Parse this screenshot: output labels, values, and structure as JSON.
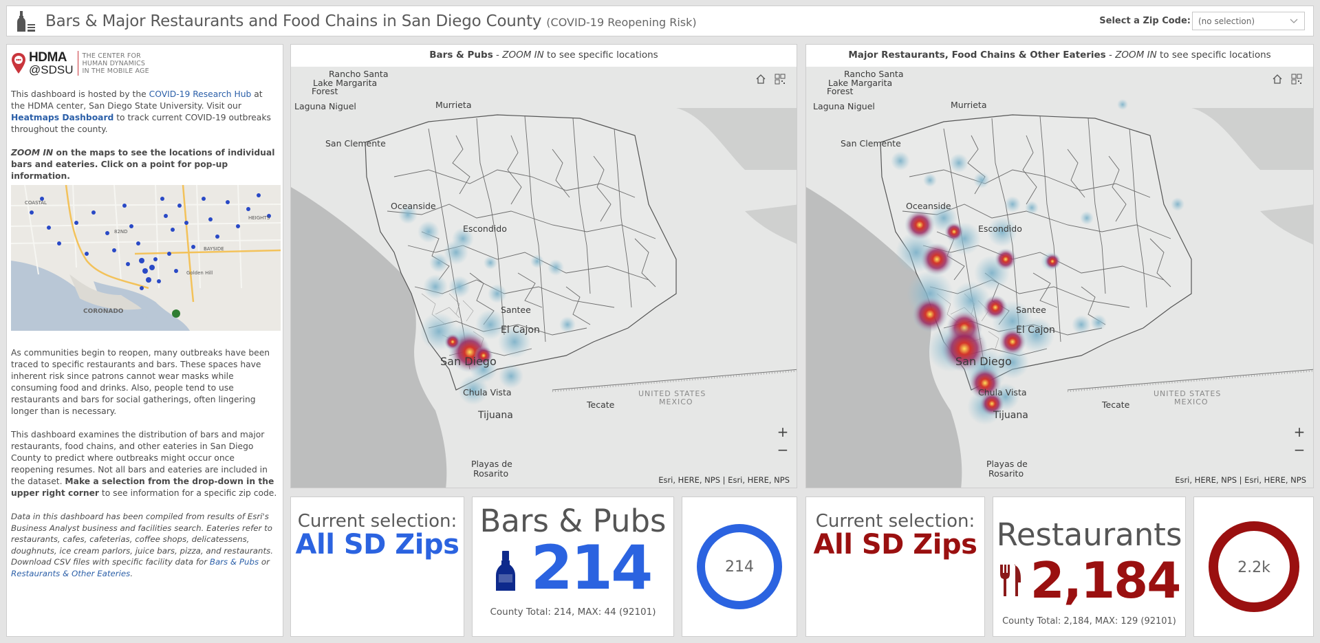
{
  "header": {
    "title": "Bars & Major Restaurants and Food Chains in San Diego County",
    "subtitle": "(COVID-19 Reopening Risk)",
    "zip_label": "Select a Zip Code:",
    "zip_value": "(no selection)",
    "icon": "bottle-and-glass-icon"
  },
  "sidebar": {
    "logo_line1": "HDMA",
    "logo_line2": "@SDSU",
    "logo_caption": [
      "THE CENTER FOR",
      "HUMAN DYNAMICS",
      "IN THE MOBILE AGE"
    ],
    "p1_a": "This dashboard is hosted by the ",
    "p1_link1": "COVID-19 Research Hub",
    "p1_b": " at the HDMA center, San Diego State University. Visit our ",
    "p1_link2": "Heatmaps Dashboard",
    "p1_c": " to track current COVID-19 outbreaks throughout the county.",
    "p2_a": "ZOOM IN",
    "p2_b": " on the maps to see the locations of individual bars and eateries. Click on a point for pop-up information.",
    "p3": "As communities begin to reopen, many outbreaks have been traced to specific restaurants and bars. These spaces have inherent risk since patrons cannot wear masks while consuming food and drinks. Also, people tend to use restaurants and bars for social gatherings, often lingering longer than is necessary.",
    "p4_a": "This dashboard examines the distribution of bars and major restaurants, food chains, and other eateries in San Diego County to predict where outbreaks might occur once reopening resumes. Not all bars and eateries are included in the dataset. ",
    "p4_b": "Make a selection from the drop-down in the upper right corner",
    "p4_c": " to see information for a specific zip code.",
    "p5_a": "Data in this dashboard has been compiled from results of Esri's Business Analyst business and facilities search. Eateries refer to restaurants, cafes, cafeterias, coffee shops, delicatessens, doughnuts, ice cream parlors, juice bars, pizza, and restaurants. Download CSV files with specific facility data for ",
    "p5_link1": "Bars & Pubs",
    "p5_or": " or ",
    "p5_link2": "Restaurants & Other Eateries",
    "p5_end": ".",
    "minimap_labels": [
      "COASTAL",
      "82ND",
      "BAYSIDE",
      "HEIGHTS",
      "CORONADO",
      "Golden Hill"
    ]
  },
  "maps": [
    {
      "title_bold": "Bars & Pubs",
      "title_sep": " - ",
      "title_italic": "ZOOM IN",
      "title_rest": " to see specific locations",
      "attribution": "Esri, HERE, NPS | Esri, HERE, NPS",
      "zoom_in": "+",
      "zoom_out": "−"
    },
    {
      "title_bold": "Major Restaurants, Food Chains & Other Eateries",
      "title_sep": " - ",
      "title_italic": "ZOOM IN",
      "title_rest": " to see specific locations",
      "attribution": "Esri, HERE, NPS | Esri, HERE, NPS",
      "zoom_in": "+",
      "zoom_out": "−"
    }
  ],
  "map_places": [
    "Rancho Santa",
    "Lake Margarita",
    "Forest",
    "Laguna Niguel",
    "Murrieta",
    "San Clemente",
    "Oceanside",
    "Escondido",
    "Santee",
    "El Cajon",
    "San Diego",
    "Chula Vista",
    "Tijuana",
    "Tecate",
    "UNITED STATES",
    "MEXICO",
    "Playas de",
    "Rosarito"
  ],
  "cards": {
    "bars_selection_label": "Current selection:",
    "bars_selection_value": "All SD Zips",
    "bars_title": "Bars & Pubs",
    "bars_count": "214",
    "bars_footer": "County Total: 214, MAX: 44 (92101)",
    "bars_ring": "214",
    "rest_selection_label": "Current selection:",
    "rest_selection_value": "All SD Zips",
    "rest_title": "Restaurants",
    "rest_count": "2,184",
    "rest_footer": "County Total: 2,184, MAX: 129 (92101)",
    "rest_ring": "2.2k",
    "colors": {
      "blue": "#2b63e0",
      "red": "#9a1010"
    }
  }
}
